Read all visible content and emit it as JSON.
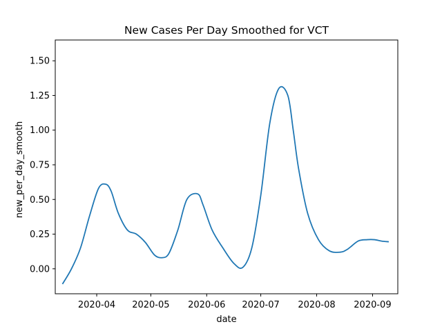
{
  "chart_data": {
    "type": "line",
    "title": "New Cases Per Day Smoothed for VCT",
    "xlabel": "date",
    "ylabel": "new_per_day_smooth",
    "x_ticks": [
      "2020-04",
      "2020-05",
      "2020-06",
      "2020-07",
      "2020-08",
      "2020-09"
    ],
    "y_ticks": [
      "0.00",
      "0.25",
      "0.50",
      "0.75",
      "1.00",
      "1.25",
      "1.50"
    ],
    "xlim": [
      "2020-03-09",
      "2020-09-15"
    ],
    "ylim": [
      -0.18,
      1.65
    ],
    "grid": false,
    "line_color": "#1f77b4",
    "series": [
      {
        "x": [
          "2020-03-13",
          "2020-03-18",
          "2020-03-23",
          "2020-03-28",
          "2020-04-02",
          "2020-04-06",
          "2020-04-09",
          "2020-04-13",
          "2020-04-18",
          "2020-04-23",
          "2020-04-28",
          "2020-05-03",
          "2020-05-07",
          "2020-05-11",
          "2020-05-16",
          "2020-05-21",
          "2020-05-27",
          "2020-05-30",
          "2020-06-04",
          "2020-06-10",
          "2020-06-16",
          "2020-06-21",
          "2020-06-26",
          "2020-07-01",
          "2020-07-06",
          "2020-07-11",
          "2020-07-16",
          "2020-07-19",
          "2020-07-22",
          "2020-07-27",
          "2020-08-02",
          "2020-08-08",
          "2020-08-14",
          "2020-08-18",
          "2020-08-24",
          "2020-08-29",
          "2020-09-02",
          "2020-09-06",
          "2020-09-10"
        ],
        "y": [
          -0.11,
          0.0,
          0.15,
          0.38,
          0.58,
          0.61,
          0.56,
          0.4,
          0.28,
          0.25,
          0.19,
          0.1,
          0.08,
          0.11,
          0.28,
          0.5,
          0.54,
          0.46,
          0.28,
          0.15,
          0.04,
          0.01,
          0.15,
          0.53,
          1.05,
          1.3,
          1.25,
          1.0,
          0.72,
          0.4,
          0.21,
          0.13,
          0.12,
          0.14,
          0.2,
          0.21,
          0.21,
          0.2,
          0.195
        ]
      }
    ]
  }
}
